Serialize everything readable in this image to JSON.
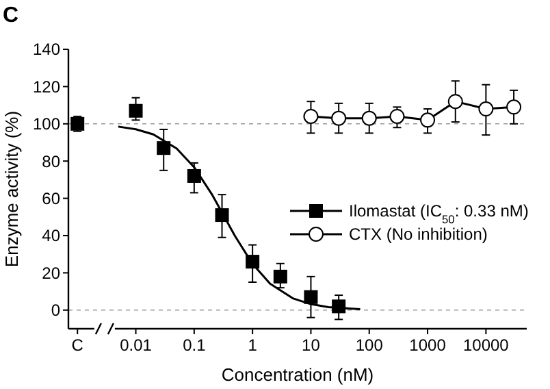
{
  "chart_data": {
    "type": "scatter",
    "title": "C",
    "xlabel": "Concentration (nM)",
    "ylabel": "Enzyme activity (%)",
    "log": "x",
    "xlim": [
      0.0007,
      50000
    ],
    "xticks": [
      {
        "value": 0.001,
        "label": "C"
      },
      0.01,
      0.1,
      1,
      10,
      100,
      1000,
      10000
    ],
    "ylim": [
      -10,
      140
    ],
    "yticks": [
      0,
      20,
      40,
      60,
      80,
      100,
      120,
      140
    ],
    "grid": false,
    "legend": "right",
    "ref_lines": [
      {
        "axis": "y",
        "value": 100,
        "color": "#999999",
        "line_style": "dashed"
      },
      {
        "axis": "y",
        "value": 0,
        "color": "#999999",
        "line_style": "dashed"
      }
    ],
    "series": [
      {
        "type": "line",
        "color": "#000000",
        "marker": "none",
        "x": [
          0.005,
          0.01,
          0.02,
          0.05,
          0.1,
          0.2,
          0.33,
          0.5,
          1,
          2,
          5,
          10,
          20,
          70
        ],
        "values": [
          98.5,
          97.1,
          94.3,
          86.8,
          76.7,
          62.3,
          50,
          39.8,
          24.8,
          14.2,
          6.2,
          3.2,
          1.6,
          0.5
        ]
      },
      {
        "name": "Ilomastat (IC$_{50}$: 0.33 nM)",
        "color": "#000000",
        "marker": "square",
        "x": [
          0.001,
          0.01,
          0.03,
          0.1,
          0.3,
          1,
          3,
          10,
          30
        ],
        "values": [
          100,
          107,
          87,
          72,
          51,
          26,
          18,
          7,
          2
        ],
        "errors": [
          [
            96,
            104
          ],
          [
            102,
            114
          ],
          [
            75,
            97
          ],
          [
            63,
            79
          ],
          [
            39,
            62
          ],
          [
            15,
            35
          ],
          [
            12,
            25
          ],
          [
            -4,
            18
          ],
          [
            -5,
            8
          ]
        ]
      },
      {
        "name": "CTX (No inhibition)",
        "type": "line",
        "color": "#000000",
        "marker": "circle",
        "x": [
          10,
          30,
          100,
          300,
          1000,
          3000,
          10000,
          30000
        ],
        "values": [
          104,
          103,
          103,
          104,
          102,
          112,
          108,
          109
        ],
        "errors": [
          [
            95,
            112
          ],
          [
            95,
            111
          ],
          [
            95,
            111
          ],
          [
            98,
            109
          ],
          [
            95,
            108
          ],
          [
            101,
            123
          ],
          [
            94,
            121
          ],
          [
            100,
            118
          ]
        ]
      }
    ]
  }
}
